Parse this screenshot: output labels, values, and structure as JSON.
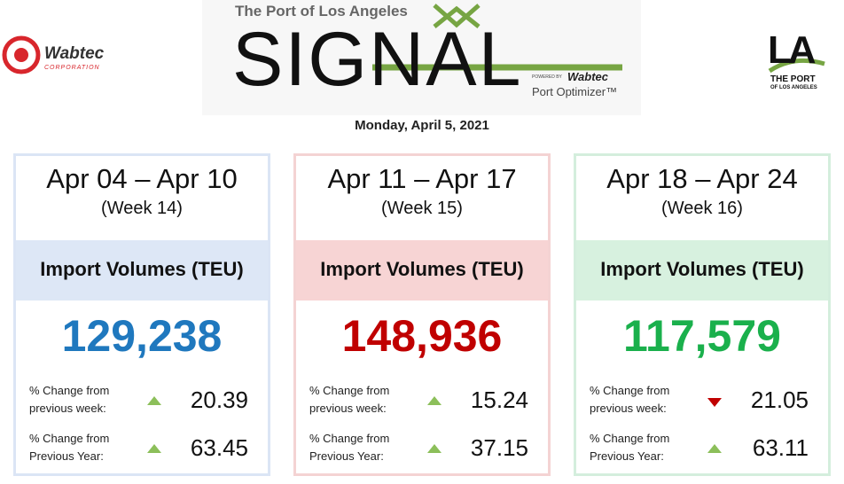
{
  "header": {
    "port_line": "The Port of Los Angeles",
    "signal": "SIGNAL",
    "powered_by": "POWERED BY",
    "wabtec": "Wabtec",
    "port_optimizer": "Port Optimizer™",
    "left_logo": {
      "name": "Wabtec",
      "sub": "CORPORATION"
    },
    "right_logo": {
      "la": "LA",
      "line1": "THE PORT",
      "line2": "OF LOS ANGELES"
    },
    "date": "Monday, April 5, 2021"
  },
  "arrow_colors": {
    "up": "#8cbf5a",
    "down": "#c00000"
  },
  "cards": [
    {
      "range": "Apr 04 – Apr 10",
      "week": "(Week 14)",
      "metric": "Import Volumes (TEU)",
      "volume": "129,238",
      "accent": "#1f78be",
      "band": "#dde7f6",
      "border": "#dbe5f5",
      "rows": [
        {
          "label_1": "% Change from",
          "label_2": "previous week:",
          "direction": "up",
          "value": "20.39"
        },
        {
          "label_1": "% Change from",
          "label_2": "Previous Year:",
          "direction": "up",
          "value": "63.45"
        }
      ]
    },
    {
      "range": "Apr 11 – Apr 17",
      "week": "(Week 15)",
      "metric": "Import Volumes (TEU)",
      "volume": "148,936",
      "accent": "#c00000",
      "band": "#f7d4d4",
      "border": "#f4d3d3",
      "rows": [
        {
          "label_1": "% Change from",
          "label_2": "previous week:",
          "direction": "up",
          "value": "15.24"
        },
        {
          "label_1": "% Change from",
          "label_2": "Previous Year:",
          "direction": "up",
          "value": "37.15"
        }
      ]
    },
    {
      "range": "Apr 18 – Apr 24",
      "week": "(Week 16)",
      "metric": "Import Volumes (TEU)",
      "volume": "117,579",
      "accent": "#1ab04c",
      "band": "#d7f1df",
      "border": "#d4eedd",
      "rows": [
        {
          "label_1": "% Change from",
          "label_2": "previous week:",
          "direction": "down",
          "value": "21.05"
        },
        {
          "label_1": "% Change from",
          "label_2": "Previous Year:",
          "direction": "up",
          "value": "63.11"
        }
      ]
    }
  ]
}
